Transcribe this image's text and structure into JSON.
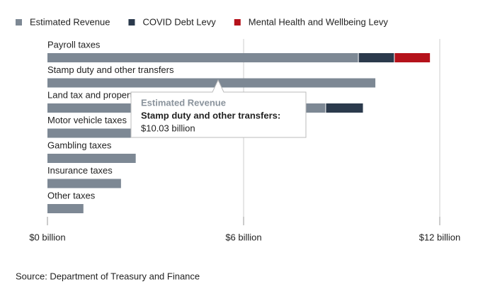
{
  "chart_data": {
    "type": "stacked-bar-horizontal",
    "categories": [
      "Payroll taxes",
      "Stamp duty and other transfers",
      "Land tax and property",
      "Motor vehicle taxes",
      "Gambling taxes",
      "Insurance taxes",
      "Other taxes"
    ],
    "series": [
      {
        "name": "Estimated Revenue",
        "color": "#7d8894",
        "values": [
          9.5,
          10.03,
          8.5,
          2.8,
          2.7,
          2.25,
          1.1
        ]
      },
      {
        "name": "COVID Debt Levy",
        "color": "#2b3a4c",
        "values": [
          1.1,
          null,
          1.15,
          null,
          null,
          null,
          null
        ]
      },
      {
        "name": "Mental Health and Wellbeing Levy",
        "color": "#b5121b",
        "values": [
          1.1,
          null,
          null,
          null,
          null,
          null,
          null
        ]
      }
    ],
    "xlim": [
      0,
      12
    ],
    "xticks": [
      {
        "value": 0,
        "label": "$0 billion"
      },
      {
        "value": 6,
        "label": "$6 billion"
      },
      {
        "value": 12,
        "label": "$12 billion"
      }
    ],
    "grid": true,
    "legend": "top",
    "tooltip": {
      "series": "Estimated Revenue",
      "category": "Stamp duty and other transfers:",
      "value_label": "$10.03 billion"
    },
    "source": "Source: Department of Treasury and Finance"
  }
}
